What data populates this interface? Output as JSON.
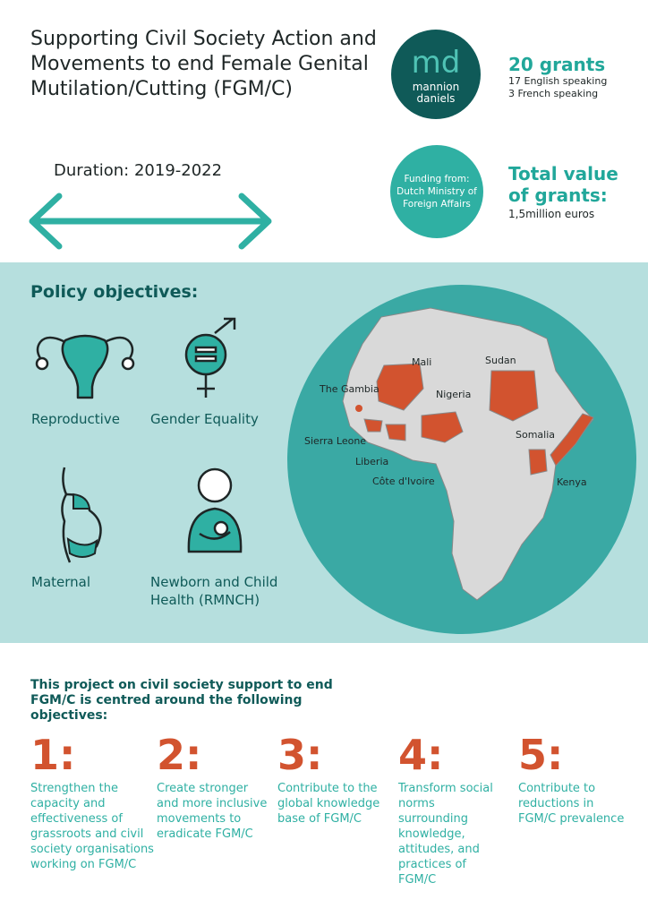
{
  "title": "Supporting Civil Society Action and Movements to end Female Genital Mutilation/Cutting (FGM/C)",
  "logo": {
    "monogram": "md",
    "name_line1": "mannion",
    "name_line2": "daniels"
  },
  "grants": {
    "count": "20 grants",
    "english": "17 English speaking",
    "french": "3 French speaking"
  },
  "funding": "Funding from: Dutch Ministry of Foreign Affairs",
  "total": {
    "label_line1": "Total value",
    "label_line2": "of grants:",
    "value": "1,5million euros"
  },
  "duration": "Duration: 2019-2022",
  "colors": {
    "teal_dark": "#0f5a58",
    "teal": "#2fb0a3",
    "band": "#b6dfde",
    "orange": "#d2532f"
  },
  "policy": {
    "heading": "Policy objectives:",
    "items": [
      {
        "label": "Reproductive",
        "icon": "uterus-icon"
      },
      {
        "label": "Gender Equality",
        "icon": "gender-equality-icon"
      },
      {
        "label": "Maternal",
        "icon": "pregnant-woman-icon"
      },
      {
        "label": "Newborn and Child Health (RMNCH)",
        "icon": "mother-child-icon"
      }
    ]
  },
  "map": {
    "countries": [
      "Mali",
      "Sudan",
      "The Gambia",
      "Nigeria",
      "Sierra Leone",
      "Somalia",
      "Liberia",
      "Côte d'Ivoire",
      "Kenya"
    ]
  },
  "intro": "This project on civil society support to end FGM/C is centred around the following objectives:",
  "objectives": [
    {
      "num": "1:",
      "text": "Strengthen the capacity and effectiveness of grassroots and civil society organisations working on FGM/C"
    },
    {
      "num": "2:",
      "text": "Create stronger and more inclusive movements to eradicate FGM/C"
    },
    {
      "num": "3:",
      "text": "Contribute to the global knowledge base of FGM/C"
    },
    {
      "num": "4:",
      "text": "Transform social norms surrounding knowledge, attitudes, and practices of FGM/C"
    },
    {
      "num": "5:",
      "text": "Contribute to reductions in FGM/C prevalence"
    }
  ]
}
